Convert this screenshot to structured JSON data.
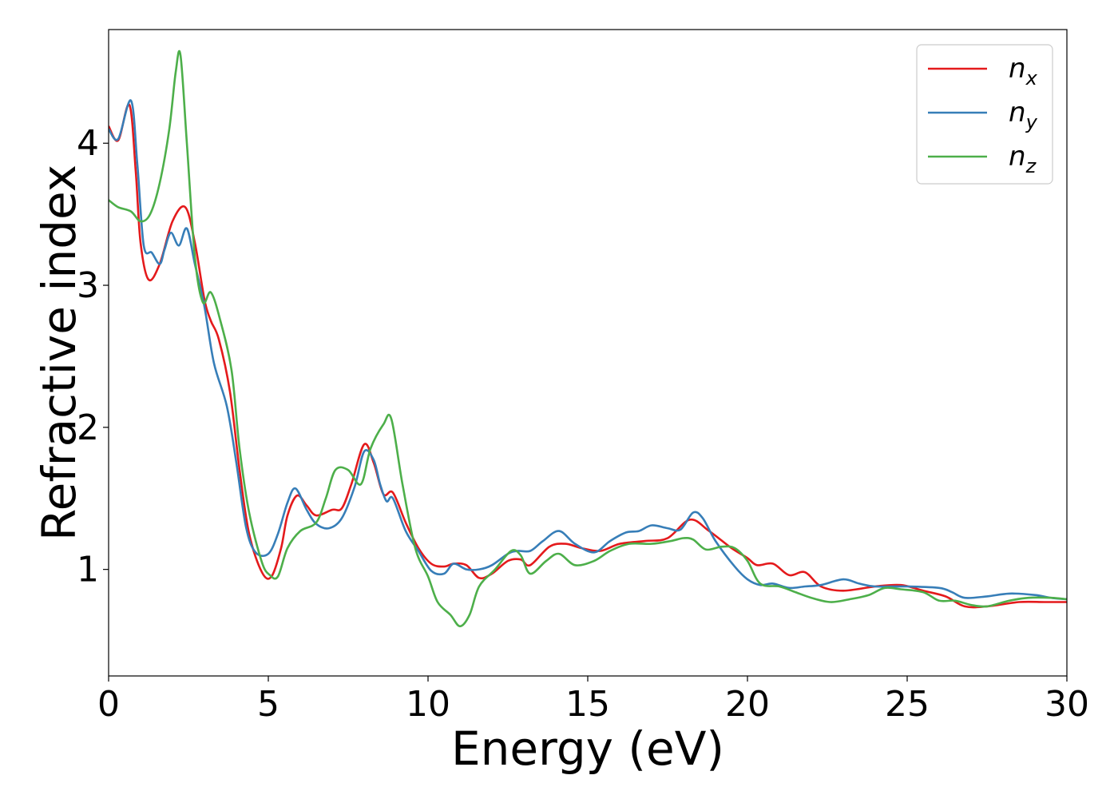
{
  "chart_data": {
    "type": "line",
    "title": "",
    "xlabel": "Energy (eV)",
    "ylabel": "Refractive index",
    "xlim": [
      0,
      30
    ],
    "ylim": [
      0.25,
      4.8
    ],
    "xticks": [
      0,
      5,
      10,
      15,
      20,
      25,
      30
    ],
    "xtick_labels": [
      "0",
      "5",
      "10",
      "15",
      "20",
      "25",
      "30"
    ],
    "yticks": [
      1,
      2,
      3,
      4
    ],
    "ytick_labels": [
      "1",
      "2",
      "3",
      "4"
    ],
    "grid": false,
    "legend_position": "top-right",
    "series": [
      {
        "name": "n",
        "subscript": "x",
        "color": "#e41a1c",
        "points": [
          [
            0,
            4.12
          ],
          [
            0.3,
            4.02
          ],
          [
            0.65,
            4.27
          ],
          [
            0.85,
            3.8
          ],
          [
            1.0,
            3.3
          ],
          [
            1.25,
            3.04
          ],
          [
            1.6,
            3.15
          ],
          [
            2.0,
            3.45
          ],
          [
            2.4,
            3.55
          ],
          [
            2.7,
            3.3
          ],
          [
            3.0,
            2.9
          ],
          [
            3.2,
            2.75
          ],
          [
            3.45,
            2.62
          ],
          [
            3.8,
            2.25
          ],
          [
            4.1,
            1.7
          ],
          [
            4.4,
            1.25
          ],
          [
            4.8,
            0.98
          ],
          [
            5.1,
            0.95
          ],
          [
            5.4,
            1.15
          ],
          [
            5.6,
            1.38
          ],
          [
            5.9,
            1.52
          ],
          [
            6.2,
            1.45
          ],
          [
            6.5,
            1.38
          ],
          [
            7.0,
            1.42
          ],
          [
            7.3,
            1.43
          ],
          [
            7.6,
            1.6
          ],
          [
            8.0,
            1.88
          ],
          [
            8.3,
            1.75
          ],
          [
            8.6,
            1.53
          ],
          [
            8.9,
            1.54
          ],
          [
            9.3,
            1.33
          ],
          [
            9.7,
            1.15
          ],
          [
            10.1,
            1.04
          ],
          [
            10.5,
            1.02
          ],
          [
            10.8,
            1.04
          ],
          [
            11.2,
            1.03
          ],
          [
            11.6,
            0.94
          ],
          [
            12.0,
            0.97
          ],
          [
            12.5,
            1.06
          ],
          [
            12.9,
            1.07
          ],
          [
            13.2,
            1.03
          ],
          [
            13.8,
            1.16
          ],
          [
            14.3,
            1.18
          ],
          [
            14.8,
            1.15
          ],
          [
            15.4,
            1.13
          ],
          [
            16.0,
            1.18
          ],
          [
            16.8,
            1.2
          ],
          [
            17.5,
            1.22
          ],
          [
            18.2,
            1.35
          ],
          [
            18.8,
            1.27
          ],
          [
            19.5,
            1.15
          ],
          [
            20.0,
            1.08
          ],
          [
            20.3,
            1.03
          ],
          [
            20.8,
            1.04
          ],
          [
            21.3,
            0.96
          ],
          [
            21.8,
            0.98
          ],
          [
            22.3,
            0.88
          ],
          [
            23.0,
            0.85
          ],
          [
            24.0,
            0.88
          ],
          [
            24.8,
            0.89
          ],
          [
            25.5,
            0.85
          ],
          [
            26.2,
            0.81
          ],
          [
            26.8,
            0.74
          ],
          [
            27.5,
            0.74
          ],
          [
            28.5,
            0.77
          ],
          [
            29.3,
            0.77
          ],
          [
            30,
            0.77
          ]
        ]
      },
      {
        "name": "n",
        "subscript": "y",
        "color": "#377eb8",
        "points": [
          [
            0,
            4.1
          ],
          [
            0.3,
            4.03
          ],
          [
            0.7,
            4.3
          ],
          [
            0.9,
            3.85
          ],
          [
            1.1,
            3.28
          ],
          [
            1.35,
            3.23
          ],
          [
            1.6,
            3.15
          ],
          [
            1.75,
            3.25
          ],
          [
            1.95,
            3.37
          ],
          [
            2.2,
            3.28
          ],
          [
            2.45,
            3.4
          ],
          [
            2.7,
            3.15
          ],
          [
            3.0,
            2.85
          ],
          [
            3.3,
            2.45
          ],
          [
            3.7,
            2.15
          ],
          [
            4.0,
            1.75
          ],
          [
            4.3,
            1.3
          ],
          [
            4.6,
            1.12
          ],
          [
            5.0,
            1.11
          ],
          [
            5.3,
            1.25
          ],
          [
            5.6,
            1.47
          ],
          [
            5.85,
            1.57
          ],
          [
            6.2,
            1.42
          ],
          [
            6.5,
            1.32
          ],
          [
            6.9,
            1.29
          ],
          [
            7.3,
            1.36
          ],
          [
            7.7,
            1.58
          ],
          [
            8.0,
            1.83
          ],
          [
            8.3,
            1.77
          ],
          [
            8.5,
            1.6
          ],
          [
            8.7,
            1.48
          ],
          [
            8.9,
            1.5
          ],
          [
            9.3,
            1.27
          ],
          [
            9.7,
            1.13
          ],
          [
            10.1,
            0.99
          ],
          [
            10.5,
            0.97
          ],
          [
            10.8,
            1.04
          ],
          [
            11.2,
            1.0
          ],
          [
            11.6,
            1.0
          ],
          [
            12.0,
            1.03
          ],
          [
            12.5,
            1.11
          ],
          [
            12.8,
            1.13
          ],
          [
            13.2,
            1.13
          ],
          [
            13.6,
            1.2
          ],
          [
            14.1,
            1.27
          ],
          [
            14.6,
            1.18
          ],
          [
            15.2,
            1.12
          ],
          [
            15.7,
            1.2
          ],
          [
            16.2,
            1.26
          ],
          [
            16.6,
            1.27
          ],
          [
            17.0,
            1.31
          ],
          [
            17.5,
            1.29
          ],
          [
            17.9,
            1.28
          ],
          [
            18.3,
            1.4
          ],
          [
            18.6,
            1.36
          ],
          [
            19.0,
            1.2
          ],
          [
            19.6,
            1.02
          ],
          [
            20.0,
            0.93
          ],
          [
            20.4,
            0.89
          ],
          [
            20.8,
            0.9
          ],
          [
            21.3,
            0.87
          ],
          [
            21.8,
            0.88
          ],
          [
            22.3,
            0.89
          ],
          [
            23.0,
            0.93
          ],
          [
            23.5,
            0.9
          ],
          [
            24.0,
            0.88
          ],
          [
            25.0,
            0.88
          ],
          [
            26.0,
            0.87
          ],
          [
            26.4,
            0.84
          ],
          [
            26.8,
            0.8
          ],
          [
            27.5,
            0.81
          ],
          [
            28.2,
            0.83
          ],
          [
            29.0,
            0.82
          ],
          [
            29.5,
            0.8
          ],
          [
            30,
            0.79
          ]
        ]
      },
      {
        "name": "n",
        "subscript": "z",
        "color": "#4daf4a",
        "points": [
          [
            0,
            3.6
          ],
          [
            0.3,
            3.55
          ],
          [
            0.7,
            3.52
          ],
          [
            1.0,
            3.45
          ],
          [
            1.3,
            3.5
          ],
          [
            1.6,
            3.72
          ],
          [
            1.9,
            4.1
          ],
          [
            2.1,
            4.5
          ],
          [
            2.25,
            4.62
          ],
          [
            2.45,
            4.0
          ],
          [
            2.7,
            3.2
          ],
          [
            2.95,
            2.88
          ],
          [
            3.2,
            2.95
          ],
          [
            3.5,
            2.75
          ],
          [
            3.85,
            2.4
          ],
          [
            4.1,
            1.85
          ],
          [
            4.4,
            1.4
          ],
          [
            4.8,
            1.05
          ],
          [
            5.05,
            0.96
          ],
          [
            5.3,
            0.95
          ],
          [
            5.6,
            1.15
          ],
          [
            6.0,
            1.27
          ],
          [
            6.5,
            1.33
          ],
          [
            6.8,
            1.5
          ],
          [
            7.1,
            1.7
          ],
          [
            7.5,
            1.7
          ],
          [
            7.9,
            1.6
          ],
          [
            8.2,
            1.85
          ],
          [
            8.6,
            2.02
          ],
          [
            8.85,
            2.06
          ],
          [
            9.2,
            1.6
          ],
          [
            9.6,
            1.15
          ],
          [
            10.0,
            0.95
          ],
          [
            10.3,
            0.77
          ],
          [
            10.7,
            0.68
          ],
          [
            11.0,
            0.6
          ],
          [
            11.3,
            0.68
          ],
          [
            11.6,
            0.88
          ],
          [
            12.1,
            1.0
          ],
          [
            12.6,
            1.13
          ],
          [
            12.9,
            1.1
          ],
          [
            13.2,
            0.97
          ],
          [
            13.7,
            1.06
          ],
          [
            14.1,
            1.11
          ],
          [
            14.6,
            1.03
          ],
          [
            15.2,
            1.06
          ],
          [
            15.7,
            1.13
          ],
          [
            16.3,
            1.18
          ],
          [
            17.0,
            1.18
          ],
          [
            17.6,
            1.2
          ],
          [
            18.0,
            1.22
          ],
          [
            18.3,
            1.21
          ],
          [
            18.7,
            1.14
          ],
          [
            19.2,
            1.16
          ],
          [
            19.6,
            1.15
          ],
          [
            20.0,
            1.06
          ],
          [
            20.4,
            0.9
          ],
          [
            21.0,
            0.88
          ],
          [
            21.5,
            0.84
          ],
          [
            22.0,
            0.8
          ],
          [
            22.6,
            0.77
          ],
          [
            23.2,
            0.79
          ],
          [
            23.8,
            0.82
          ],
          [
            24.3,
            0.87
          ],
          [
            24.8,
            0.86
          ],
          [
            25.5,
            0.84
          ],
          [
            26.0,
            0.78
          ],
          [
            26.5,
            0.78
          ],
          [
            27.0,
            0.75
          ],
          [
            27.5,
            0.74
          ],
          [
            28.2,
            0.78
          ],
          [
            28.8,
            0.8
          ],
          [
            29.5,
            0.8
          ],
          [
            30,
            0.79
          ]
        ]
      }
    ]
  }
}
